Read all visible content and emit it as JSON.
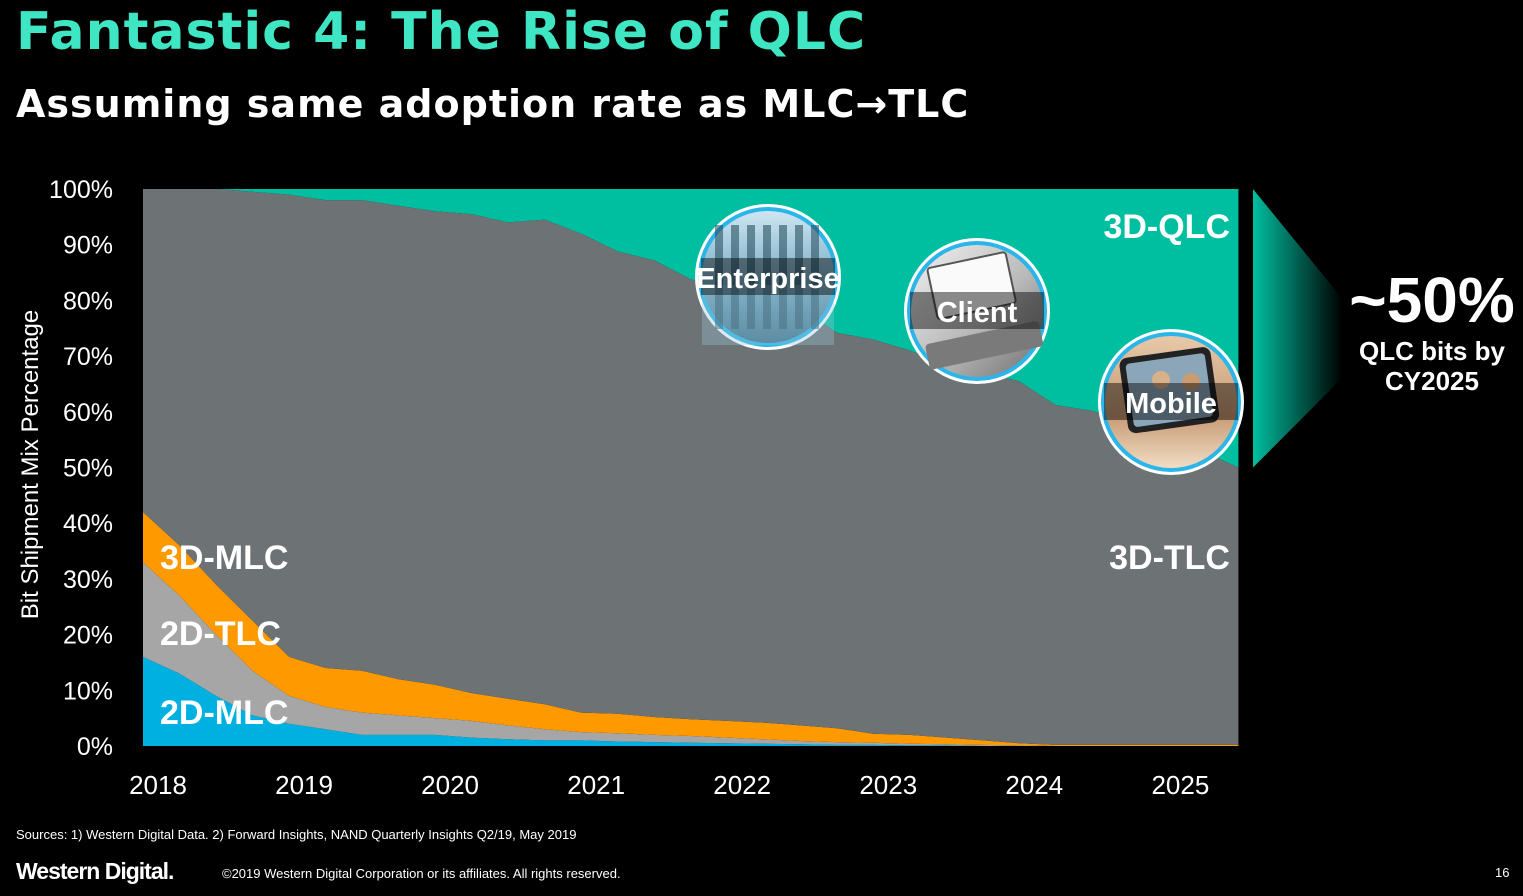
{
  "title": "Fantastic 4: The Rise of QLC",
  "subtitle": "Assuming same adoption rate as MLC→TLC",
  "colors": {
    "title": "#3fe6c4",
    "qlc": "#00bfa0",
    "tlc3d": "#6d7274",
    "mlc3d": "#ff9900",
    "tlc2d": "#a6a6a6",
    "mlc2d": "#00b0e0",
    "ring": "#2bb5e8"
  },
  "chart_data": {
    "type": "area",
    "stacked": true,
    "title": "Fantastic 4: The Rise of QLC",
    "ylabel": "Bit Shipment Mix Percentage",
    "xlabel": "",
    "ylim": [
      0,
      100
    ],
    "xlim": [
      2018,
      2025.6
    ],
    "categories": [
      "2018",
      "2019",
      "2020",
      "2021",
      "2022",
      "2023",
      "2024",
      "2025"
    ],
    "y_ticks": [
      "0%",
      "10%",
      "20%",
      "30%",
      "40%",
      "50%",
      "60%",
      "70%",
      "80%",
      "90%",
      "100%"
    ],
    "x": [
      2018.0,
      2018.25,
      2018.5,
      2018.75,
      2019.0,
      2019.25,
      2019.5,
      2019.75,
      2020.0,
      2020.25,
      2020.5,
      2020.75,
      2021.0,
      2021.25,
      2021.5,
      2021.75,
      2022.0,
      2022.25,
      2022.5,
      2022.75,
      2023.0,
      2023.25,
      2023.5,
      2023.75,
      2024.0,
      2024.25,
      2024.5,
      2024.75,
      2025.0,
      2025.25,
      2025.5
    ],
    "series": [
      {
        "name": "2D-MLC",
        "values": [
          16,
          13,
          9,
          5.5,
          4,
          3,
          2,
          2,
          2,
          1.5,
          1.2,
          1,
          1,
          0.8,
          0.7,
          0.6,
          0.5,
          0.4,
          0.3,
          0.2,
          0.2,
          0.1,
          0.1,
          0,
          0,
          0,
          0,
          0,
          0,
          0,
          0
        ]
      },
      {
        "name": "2D-TLC",
        "values": [
          17,
          14,
          11,
          8,
          5,
          4,
          4,
          3.5,
          3,
          3,
          2.5,
          2,
          1.5,
          1.5,
          1.3,
          1.2,
          1,
          0.8,
          0.6,
          0.5,
          0.4,
          0.3,
          0.2,
          0.2,
          0.1,
          0,
          0,
          0,
          0,
          0,
          0
        ]
      },
      {
        "name": "3D-MLC",
        "values": [
          9,
          9,
          9,
          9,
          7,
          7,
          7.5,
          6.5,
          6,
          5,
          4.8,
          4.5,
          3.5,
          3.5,
          3.2,
          3,
          3,
          3,
          2.8,
          2.5,
          1.6,
          1.6,
          1.2,
          0.8,
          0.4,
          0.2,
          0.2,
          0.2,
          0.2,
          0.2,
          0.2
        ]
      },
      {
        "name": "3D-TLC",
        "values": [
          58,
          64,
          71,
          77,
          83,
          84,
          84.5,
          85,
          85,
          86,
          85.5,
          87,
          86,
          83,
          82,
          79,
          77.5,
          76,
          75,
          71,
          70.8,
          69,
          67,
          66,
          65,
          61,
          60,
          57.8,
          54.8,
          52.8,
          49.8
        ]
      },
      {
        "name": "3D-QLC",
        "values": [
          0,
          0,
          0,
          0.5,
          1,
          2,
          2,
          3,
          4,
          4.5,
          6,
          5.5,
          8,
          11.2,
          12.8,
          16.2,
          18,
          19.8,
          21.3,
          25.8,
          27,
          29,
          31.5,
          33,
          34.5,
          38.8,
          39.8,
          42,
          45,
          47,
          50
        ]
      }
    ],
    "area_labels": [
      "3D-QLC",
      "3D-TLC",
      "3D-MLC",
      "2D-TLC",
      "2D-MLC"
    ],
    "segment_images": [
      "Enterprise",
      "Client",
      "Mobile"
    ],
    "callout": {
      "value": "~50%",
      "text_line1": "QLC bits by",
      "text_line2": "CY2025"
    }
  },
  "footer": {
    "sources": "Sources: 1) Western Digital Data. 2) Forward Insights, NAND Quarterly Insights Q2/19, May 2019",
    "brand": "Western Digital.",
    "copyright": "©2019 Western Digital Corporation or its affiliates. All rights reserved.",
    "page_number": "16"
  }
}
